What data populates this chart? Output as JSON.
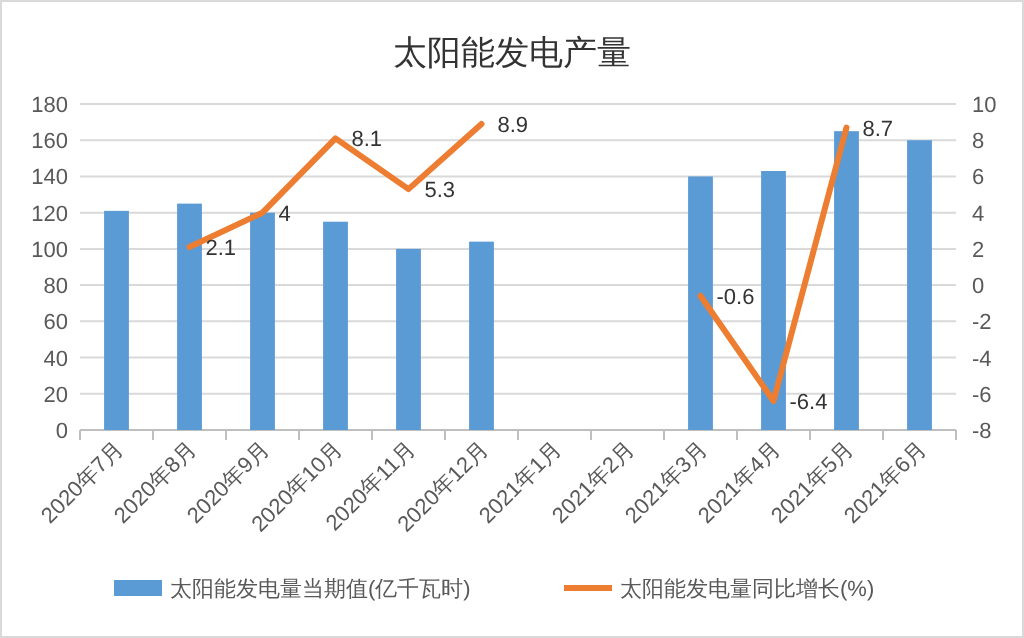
{
  "chart_data": {
    "type": "bar",
    "title": "太阳能发电产量",
    "categories": [
      "2020年7月",
      "2020年8月",
      "2020年9月",
      "2020年10月",
      "2020年11月",
      "2020年12月",
      "2021年1月",
      "2021年2月",
      "2021年3月",
      "2021年4月",
      "2021年5月",
      "2021年6月"
    ],
    "series": [
      {
        "name": "太阳能发电量当期值(亿千瓦时)",
        "color": "#5b9bd5",
        "values": [
          121,
          125,
          120,
          115,
          100,
          104,
          null,
          null,
          140,
          143,
          165,
          160
        ]
      },
      {
        "name": "太阳能发电量同比增长(%)",
        "type": "line",
        "axis": "y2",
        "color": "#ed7d31",
        "values": [
          null,
          2.1,
          4,
          8.1,
          5.3,
          8.9,
          null,
          null,
          -0.6,
          -6.4,
          8.7,
          null
        ],
        "value_labels": [
          null,
          "2.1",
          "4",
          "8.1",
          "5.3",
          "8.9",
          null,
          null,
          "-0.6",
          "-6.4",
          "8.7",
          null
        ]
      }
    ],
    "ylim": [
      0,
      180
    ],
    "yticks": [
      0,
      20,
      40,
      60,
      80,
      100,
      120,
      140,
      160,
      180
    ],
    "y2lim": [
      -8,
      10
    ],
    "y2ticks": [
      -8,
      -6,
      -4,
      -2,
      0,
      2,
      4,
      6,
      8,
      10
    ],
    "grid": "y",
    "legend": "bottom"
  }
}
